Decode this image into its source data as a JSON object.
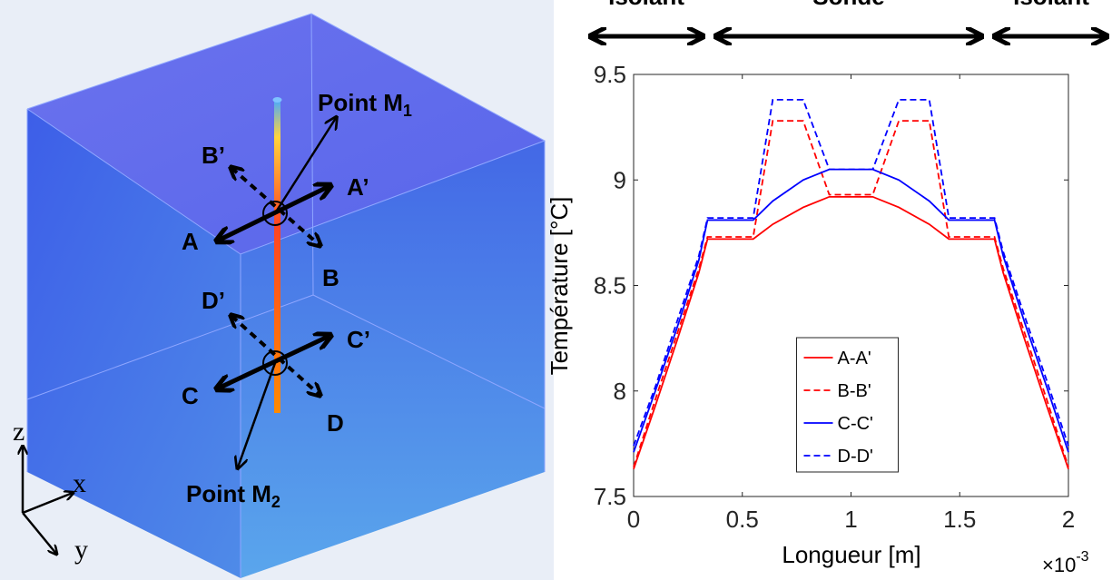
{
  "diagram": {
    "top_labels": [
      "Isolant",
      "Sonde",
      "Isolant"
    ],
    "point_m1": {
      "label": "Point M",
      "sub": "1"
    },
    "point_m2": {
      "label": "Point M",
      "sub": "2"
    },
    "section_labels": {
      "A": "A",
      "A_prime": "A’",
      "B": "B",
      "B_prime": "B’",
      "C": "C",
      "C_prime": "C’",
      "D": "D",
      "D_prime": "D’"
    },
    "axes": {
      "z": "z",
      "x": "x",
      "y": "y"
    }
  },
  "chart_data": {
    "type": "line",
    "xlabel": "Longueur [m]",
    "x_scale_label": {
      "base": "×10",
      "exponent": "-3"
    },
    "ylabel": "Température [°C]",
    "x": [
      0,
      0.1,
      0.2,
      0.3,
      0.34,
      0.55,
      0.64,
      0.78,
      0.9,
      1.1,
      1.22,
      1.36,
      1.45,
      1.66,
      1.7,
      1.8,
      1.9,
      2
    ],
    "series": [
      {
        "name": "A-A'",
        "color": "#ff0000",
        "linestyle": "solid",
        "values": [
          7.63,
          7.93,
          8.24,
          8.56,
          8.72,
          8.72,
          8.79,
          8.87,
          8.92,
          8.92,
          8.87,
          8.79,
          8.72,
          8.72,
          8.56,
          8.24,
          7.93,
          7.63
        ]
      },
      {
        "name": "B-B'",
        "color": "#ff0000",
        "linestyle": "dashed",
        "values": [
          7.64,
          7.96,
          8.27,
          8.58,
          8.73,
          8.73,
          9.28,
          9.28,
          8.93,
          8.93,
          9.28,
          9.28,
          8.73,
          8.73,
          8.58,
          8.27,
          7.96,
          7.64
        ]
      },
      {
        "name": "C-C'",
        "color": "#0000ff",
        "linestyle": "solid",
        "values": [
          7.71,
          8.0,
          8.3,
          8.62,
          8.81,
          8.81,
          8.9,
          9.0,
          9.05,
          9.05,
          9.0,
          8.9,
          8.81,
          8.81,
          8.64,
          8.32,
          8.02,
          7.71
        ]
      },
      {
        "name": "D-D'",
        "color": "#0000ff",
        "linestyle": "dashed",
        "values": [
          7.74,
          8.02,
          8.33,
          8.64,
          8.82,
          8.82,
          9.38,
          9.38,
          9.05,
          9.05,
          9.38,
          9.38,
          8.82,
          8.82,
          8.66,
          8.35,
          8.05,
          7.74
        ]
      }
    ],
    "xlim": [
      0,
      2
    ],
    "xticks": [
      0,
      0.5,
      1,
      1.5,
      2
    ],
    "ylim": [
      7.5,
      9.5
    ],
    "yticks": [
      7.5,
      8,
      8.5,
      9,
      9.5
    ],
    "grid": false,
    "legend": "lower center"
  }
}
